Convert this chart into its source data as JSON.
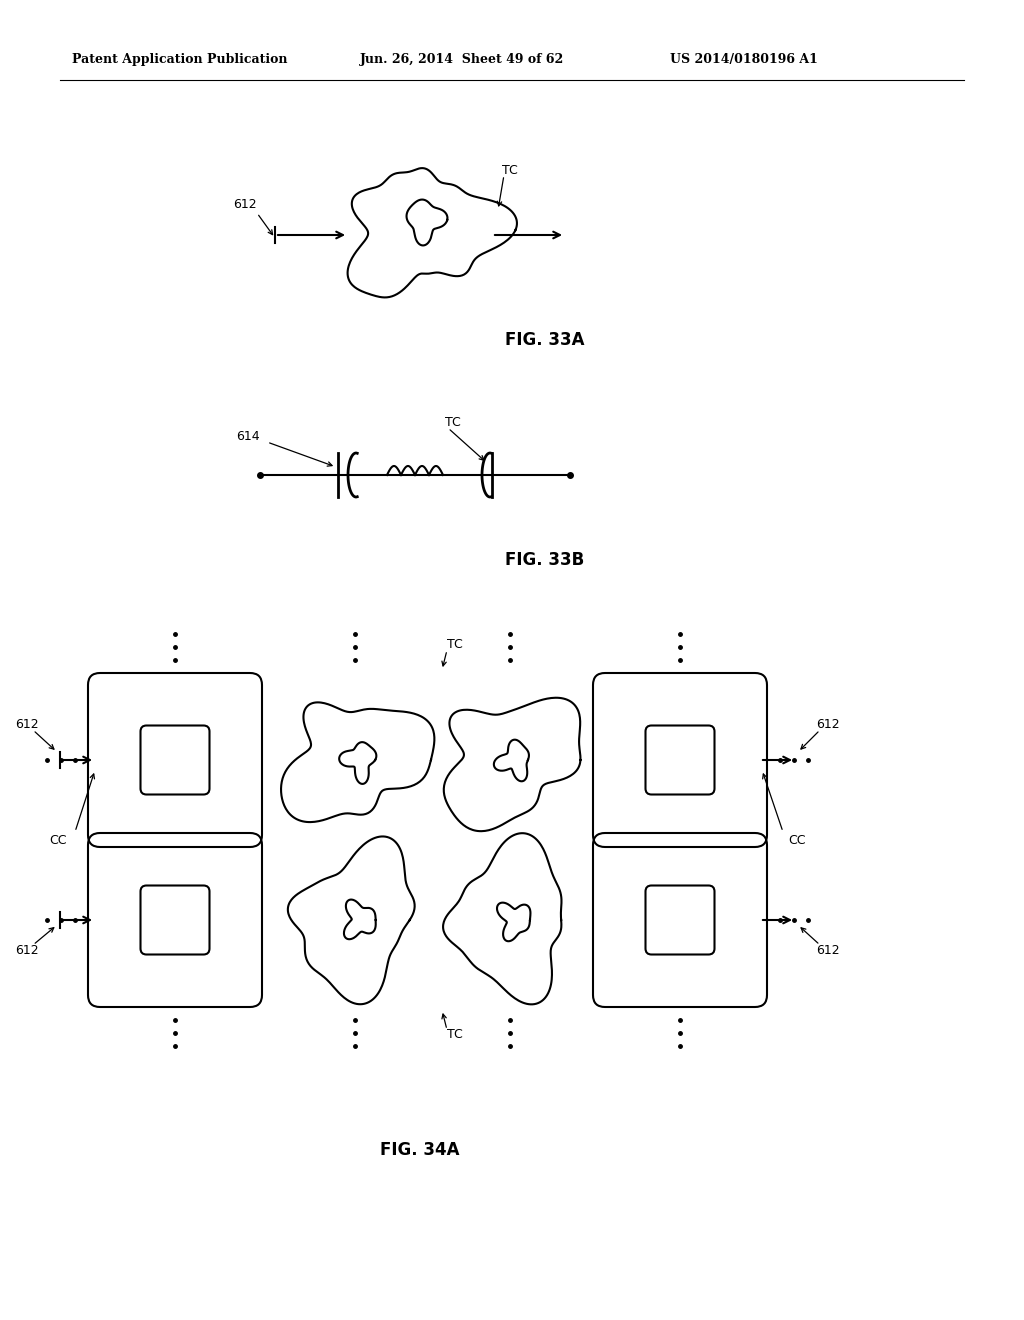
{
  "bg_color": "#ffffff",
  "header_left": "Patent Application Publication",
  "header_mid": "Jun. 26, 2014  Sheet 49 of 62",
  "header_right": "US 2014/0180196 A1",
  "fig33a_label": "FIG. 33A",
  "fig33b_label": "FIG. 33B",
  "fig34a_label": "FIG. 34A",
  "label_612": "612",
  "label_614": "614",
  "label_TC": "TC",
  "label_CC": "CC"
}
